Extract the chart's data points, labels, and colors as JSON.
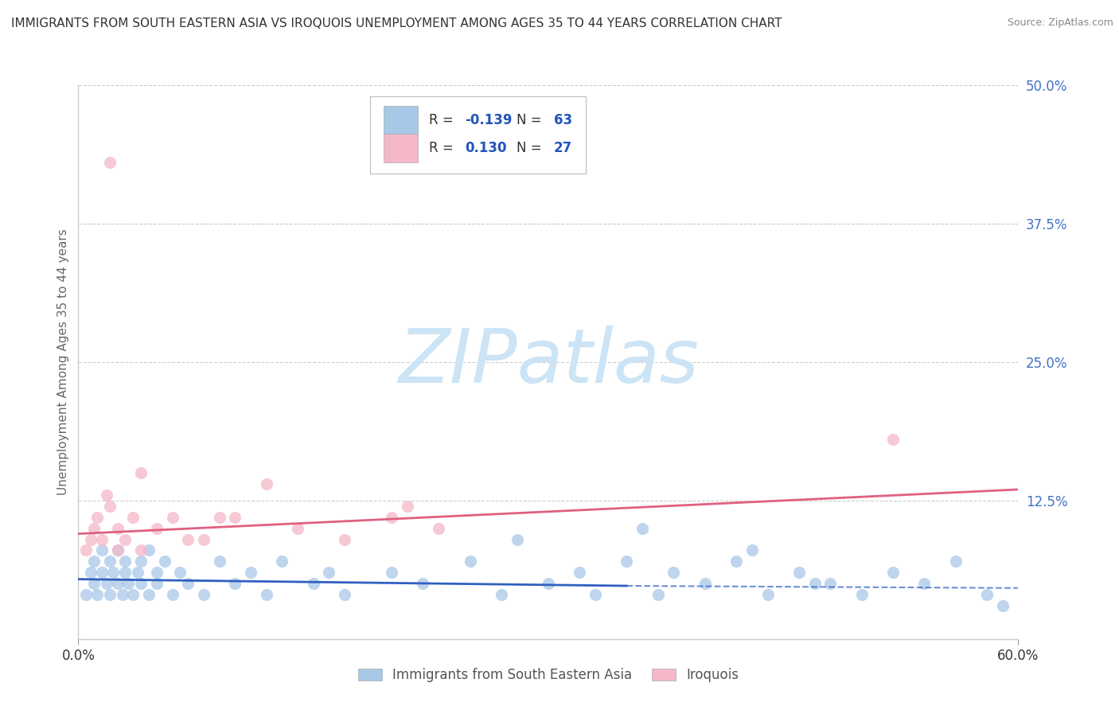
{
  "title": "IMMIGRANTS FROM SOUTH EASTERN ASIA VS IROQUOIS UNEMPLOYMENT AMONG AGES 35 TO 44 YEARS CORRELATION CHART",
  "source": "Source: ZipAtlas.com",
  "ylabel": "Unemployment Among Ages 35 to 44 years",
  "xlim": [
    0.0,
    0.6
  ],
  "ylim": [
    0.0,
    0.5
  ],
  "yticks_right": [
    0.125,
    0.25,
    0.375,
    0.5
  ],
  "ytick_labels_right": [
    "12.5%",
    "25.0%",
    "37.5%",
    "50.0%"
  ],
  "legend_R_blue": "-0.139",
  "legend_N_blue": "63",
  "legend_R_pink": "0.130",
  "legend_N_pink": "27",
  "blue_color": "#a8c8e8",
  "pink_color": "#f4b8c8",
  "line_blue": "#3060c0",
  "line_pink": "#e06080",
  "text_color": "#333333",
  "axis_color": "#999999",
  "grid_color": "#cccccc",
  "watermark": "ZIPatlas",
  "watermark_color": "#cce4f5",
  "background_color": "#ffffff",
  "blue_x": [
    0.005,
    0.008,
    0.01,
    0.01,
    0.012,
    0.015,
    0.015,
    0.018,
    0.02,
    0.02,
    0.022,
    0.025,
    0.025,
    0.028,
    0.03,
    0.03,
    0.032,
    0.035,
    0.038,
    0.04,
    0.04,
    0.045,
    0.045,
    0.05,
    0.05,
    0.055,
    0.06,
    0.065,
    0.07,
    0.08,
    0.09,
    0.1,
    0.11,
    0.12,
    0.13,
    0.15,
    0.17,
    0.2,
    0.22,
    0.25,
    0.27,
    0.3,
    0.32,
    0.35,
    0.37,
    0.38,
    0.4,
    0.42,
    0.44,
    0.46,
    0.48,
    0.5,
    0.52,
    0.54,
    0.56,
    0.58,
    0.59,
    0.28,
    0.33,
    0.43,
    0.47,
    0.36,
    0.16
  ],
  "blue_y": [
    0.04,
    0.06,
    0.05,
    0.07,
    0.04,
    0.06,
    0.08,
    0.05,
    0.04,
    0.07,
    0.06,
    0.05,
    0.08,
    0.04,
    0.06,
    0.07,
    0.05,
    0.04,
    0.06,
    0.05,
    0.07,
    0.04,
    0.08,
    0.06,
    0.05,
    0.07,
    0.04,
    0.06,
    0.05,
    0.04,
    0.07,
    0.05,
    0.06,
    0.04,
    0.07,
    0.05,
    0.04,
    0.06,
    0.05,
    0.07,
    0.04,
    0.05,
    0.06,
    0.07,
    0.04,
    0.06,
    0.05,
    0.07,
    0.04,
    0.06,
    0.05,
    0.04,
    0.06,
    0.05,
    0.07,
    0.04,
    0.03,
    0.09,
    0.04,
    0.08,
    0.05,
    0.1,
    0.06
  ],
  "pink_x": [
    0.005,
    0.008,
    0.01,
    0.012,
    0.015,
    0.018,
    0.02,
    0.025,
    0.03,
    0.035,
    0.04,
    0.05,
    0.06,
    0.08,
    0.1,
    0.12,
    0.14,
    0.17,
    0.21,
    0.23,
    0.025,
    0.04,
    0.07,
    0.09,
    0.52,
    0.02,
    0.2
  ],
  "pink_y": [
    0.08,
    0.09,
    0.1,
    0.11,
    0.09,
    0.13,
    0.12,
    0.1,
    0.09,
    0.11,
    0.08,
    0.1,
    0.11,
    0.09,
    0.11,
    0.14,
    0.1,
    0.09,
    0.12,
    0.1,
    0.08,
    0.15,
    0.09,
    0.11,
    0.18,
    0.43,
    0.11
  ],
  "blue_line_x": [
    0.0,
    0.35,
    0.6
  ],
  "blue_line_y": [
    0.054,
    0.048,
    0.046
  ],
  "blue_line_solid_end": 0.35,
  "pink_line_x": [
    0.0,
    0.6
  ],
  "pink_line_y": [
    0.095,
    0.135
  ]
}
